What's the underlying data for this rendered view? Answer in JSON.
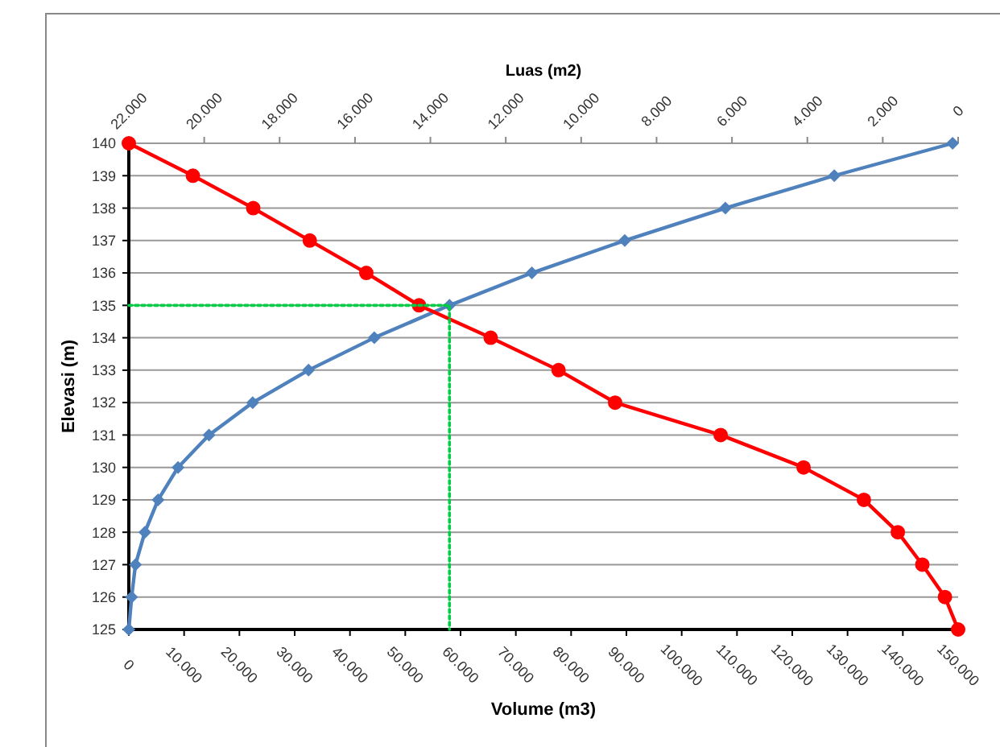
{
  "chart_data": {
    "type": "line",
    "xlabel": "Volume (m3)",
    "ylabel": "Elevasi (m)",
    "x2label": "Luas (m2)",
    "xlim": [
      0,
      150000
    ],
    "xticks": [
      0,
      {
        "value": 10000,
        "label": "10.000"
      },
      {
        "value": 20000,
        "label": "20.000"
      },
      {
        "value": 30000,
        "label": "30.000"
      },
      {
        "value": 40000,
        "label": "40.000"
      },
      {
        "value": 50000,
        "label": "50.000"
      },
      {
        "value": 60000,
        "label": "60.000"
      },
      {
        "value": 70000,
        "label": "70.000"
      },
      {
        "value": 80000,
        "label": "80.000"
      },
      {
        "value": 90000,
        "label": "90.000"
      },
      {
        "value": 100000,
        "label": "100.000"
      },
      {
        "value": 110000,
        "label": "110.000"
      },
      {
        "value": 120000,
        "label": "120.000"
      },
      {
        "value": 130000,
        "label": "130.000"
      },
      {
        "value": 140000,
        "label": "140.000"
      },
      {
        "value": 150000,
        "label": "150.000"
      }
    ],
    "x2lim": [
      22000,
      0
    ],
    "x2ticks": [
      {
        "value": 22000,
        "label": "22.000"
      },
      {
        "value": 20000,
        "label": "20.000"
      },
      {
        "value": 18000,
        "label": "18.000"
      },
      {
        "value": 16000,
        "label": "16.000"
      },
      {
        "value": 14000,
        "label": "14.000"
      },
      {
        "value": 12000,
        "label": "12.000"
      },
      {
        "value": 10000,
        "label": "10.000"
      },
      {
        "value": 8000,
        "label": "8.000"
      },
      {
        "value": 6000,
        "label": "6.000"
      },
      {
        "value": 4000,
        "label": "4.000"
      },
      {
        "value": 2000,
        "label": "2.000"
      },
      0
    ],
    "ylim": [
      125,
      140
    ],
    "yticks": [
      125,
      126,
      127,
      128,
      129,
      130,
      131,
      132,
      133,
      134,
      135,
      136,
      137,
      138,
      139,
      140
    ],
    "grid": "y",
    "series": [
      {
        "type": "line",
        "color": "#4f81bd",
        "marker": "diamond",
        "x": [
          0,
          500,
          1200,
          2900,
          5300,
          8900,
          14500,
          22400,
          32500,
          44400,
          58000,
          72900,
          89700,
          107900,
          127600,
          149000
        ],
        "values": [
          125,
          126,
          127,
          128,
          129,
          130,
          131,
          132,
          133,
          134,
          135,
          136,
          137,
          138,
          139,
          140
        ]
      },
      {
        "type": "line",
        "axis": "x2",
        "color": "#ff0000",
        "marker": "circle",
        "x": [
          22000,
          20300,
          18700,
          17200,
          15700,
          14300,
          12400,
          10600,
          9100,
          6300,
          4100,
          2500,
          1600,
          950,
          350,
          0
        ],
        "values": [
          140,
          139,
          138,
          137,
          136,
          135,
          134,
          133,
          132,
          131,
          130,
          129,
          128,
          127,
          126,
          125
        ]
      },
      {
        "type": "line",
        "color": "#00cc44",
        "marker": "none",
        "line_style": "dotted",
        "x": [
          0,
          58000,
          58000
        ],
        "values": [
          135,
          135,
          125
        ]
      }
    ]
  }
}
